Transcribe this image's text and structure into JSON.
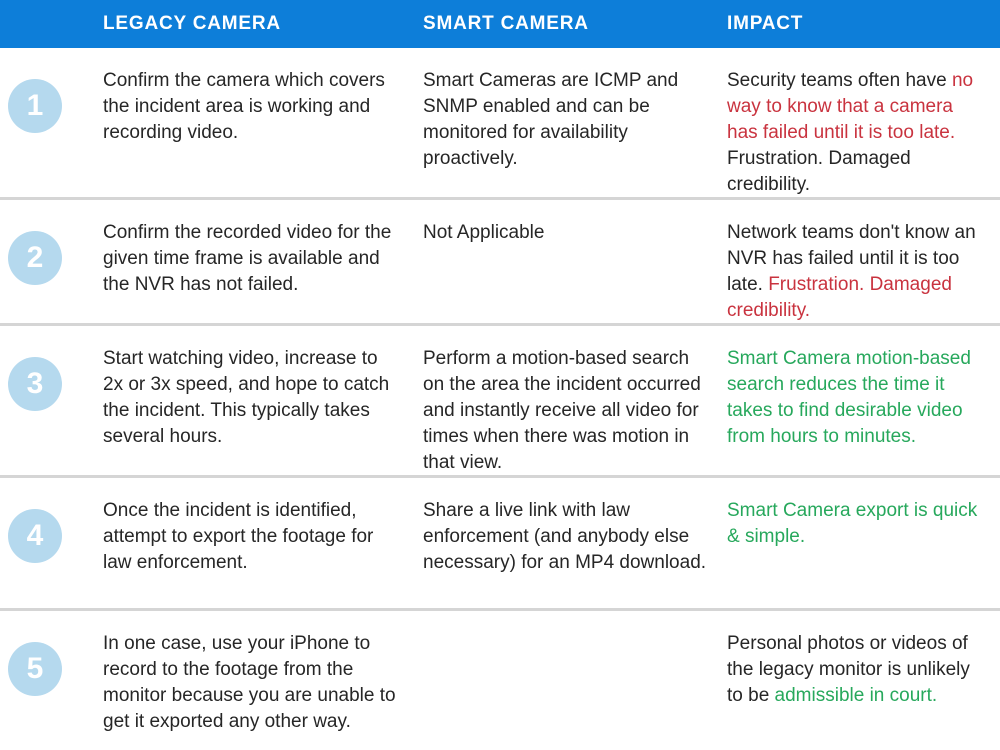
{
  "header": {
    "columns": [
      "LEGACY CAMERA",
      "SMART CAMERA",
      "IMPACT"
    ]
  },
  "colors": {
    "header_bg": "#0d7ed9",
    "header_text": "#ffffff",
    "circle_bg": "#b5d9ee",
    "circle_text": "#ffffff",
    "body_text": "#262626",
    "red": "#c9333f",
    "green": "#27a85c",
    "separator": "#d5d5d5",
    "default": ""
  },
  "rows": [
    {
      "number": "1",
      "legacy": [
        {
          "text": "Confirm the camera which covers the incident area is working and recording video.",
          "color": "default"
        }
      ],
      "smart": [
        {
          "text": "Smart Cameras are ICMP and SNMP enabled and can be monitored for availability proactively.",
          "color": "default"
        }
      ],
      "impact": [
        {
          "text": "Security teams often have ",
          "color": "default"
        },
        {
          "text": "no way to know that a camera has failed until it is too late.",
          "color": "red"
        },
        {
          "text": " Frustration. Damaged credibility.",
          "color": "default"
        }
      ]
    },
    {
      "number": "2",
      "legacy": [
        {
          "text": "Confirm the recorded video for the given time frame is available and the NVR has not failed.",
          "color": "default"
        }
      ],
      "smart": [
        {
          "text": "Not Applicable",
          "color": "default"
        }
      ],
      "impact": [
        {
          "text": "Network teams don't know an NVR has failed until it is too late. ",
          "color": "default"
        },
        {
          "text": "Frustration. Damaged credibility.",
          "color": "red"
        }
      ]
    },
    {
      "number": "3",
      "legacy": [
        {
          "text": "Start watching video, increase to 2x or 3x speed, and hope to catch the incident. This typically takes several hours.",
          "color": "default"
        }
      ],
      "smart": [
        {
          "text": "Perform a motion-based search on the area the incident occurred and instantly receive all video for times when there was motion in that view.",
          "color": "default"
        }
      ],
      "impact": [
        {
          "text": "Smart Camera motion-based search reduces the time it takes to find desirable video from hours to minutes.",
          "color": "green"
        }
      ]
    },
    {
      "number": "4",
      "legacy": [
        {
          "text": "Once the incident is identified, attempt to export the footage for law enforcement.",
          "color": "default"
        }
      ],
      "smart": [
        {
          "text": "Share a live link with law enforcement (and anybody else necessary) for an MP4 download.",
          "color": "default"
        }
      ],
      "impact": [
        {
          "text": "Smart Camera export is quick & simple.",
          "color": "green"
        }
      ]
    },
    {
      "number": "5",
      "legacy": [
        {
          "text": "In one case, use your iPhone to record to the footage from the monitor because you are unable to get it exported any other way.",
          "color": "default"
        }
      ],
      "smart": [],
      "impact": [
        {
          "text": "Personal photos or videos of the legacy monitor is unlikely to be ",
          "color": "default"
        },
        {
          "text": "admissible in court.",
          "color": "green"
        }
      ]
    }
  ]
}
